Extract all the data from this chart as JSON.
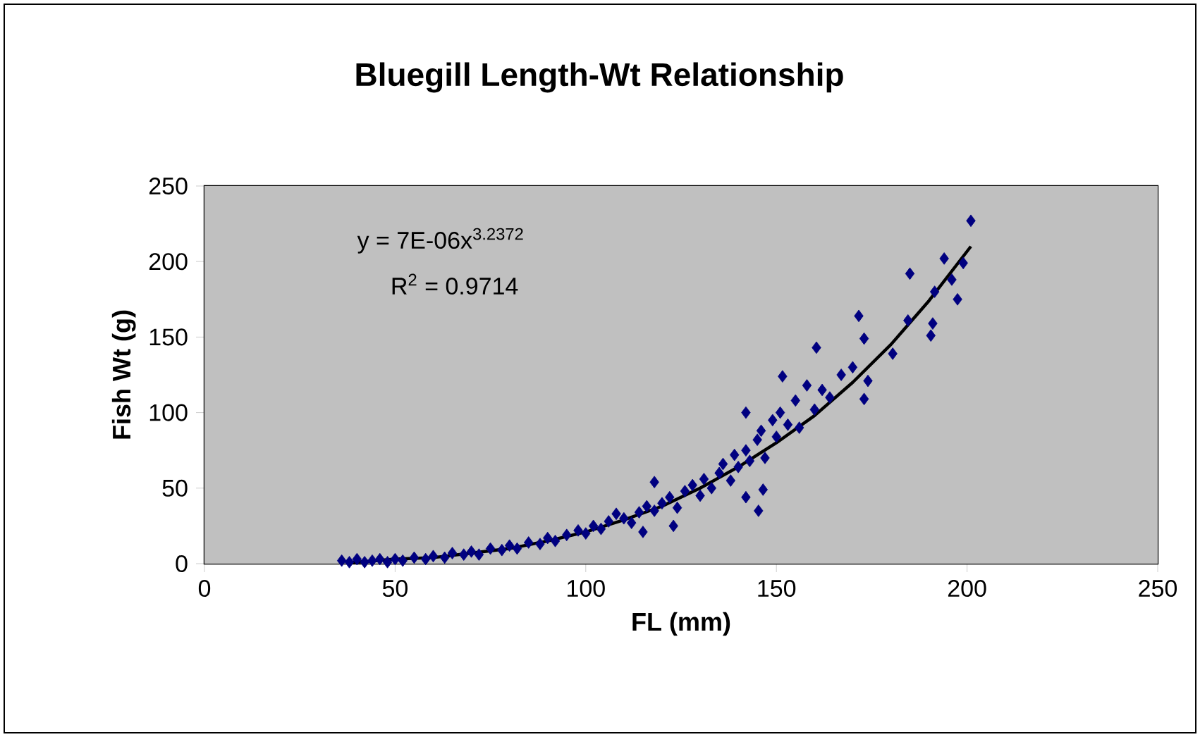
{
  "chart_data": {
    "type": "scatter",
    "title": "Bluegill Length-Wt Relationship",
    "xlabel": "FL (mm)",
    "ylabel": "Fish Wt (g)",
    "xlim": [
      0,
      250
    ],
    "xticks": [
      0,
      50,
      100,
      150,
      200,
      250
    ],
    "ylim": [
      0,
      250
    ],
    "yticks": [
      0,
      50,
      100,
      150,
      200,
      250
    ],
    "marker": "diamond",
    "annotations": [
      "y = 7E-06x$^{3.2372}$",
      "R$^{2}$ = 0.9714"
    ],
    "series": [
      {
        "color": "#000080",
        "x": [
          36,
          38,
          40,
          42,
          44,
          46,
          48,
          50,
          52,
          55,
          58,
          60,
          63,
          65,
          68,
          70,
          72,
          75,
          78,
          80,
          82,
          85,
          88,
          90,
          92,
          95,
          98,
          100,
          102,
          104,
          106,
          108,
          110,
          112,
          114,
          116,
          118,
          120,
          122,
          124,
          126,
          128,
          130,
          131,
          133,
          135,
          136,
          138,
          139,
          140,
          142,
          143,
          145,
          146,
          147,
          149,
          150,
          151,
          153,
          155,
          156,
          158,
          160,
          162,
          164,
          167,
          170,
          201,
          194,
          199,
          196,
          197.5,
          185,
          191.5,
          191,
          190.5,
          171.6,
          184.5,
          180.5,
          173,
          160.5,
          151.6,
          173,
          174,
          145.3,
          146.5,
          142,
          118,
          123,
          115,
          142
        ],
        "values": [
          2,
          1,
          3,
          1,
          2,
          3,
          1,
          3,
          2,
          4,
          3,
          5,
          4,
          7,
          6,
          8,
          6,
          10,
          9,
          12,
          10,
          14,
          13,
          17,
          15,
          19,
          22,
          20,
          25,
          23,
          28,
          33,
          30,
          27,
          34,
          38,
          35,
          40,
          44,
          37,
          48,
          52,
          45,
          56,
          50,
          60,
          66,
          55,
          72,
          64,
          75,
          68,
          82,
          88,
          70,
          95,
          84,
          100,
          92,
          108,
          90,
          118,
          102,
          115,
          110,
          125,
          130,
          227,
          202,
          199,
          188,
          175,
          192,
          180,
          159,
          151,
          164,
          161,
          139,
          149,
          143,
          124,
          109,
          121,
          35,
          49,
          44,
          54,
          25,
          21,
          100
        ]
      },
      {
        "type": "line",
        "marker": "none",
        "color": "#000000",
        "x": [
          37,
          40,
          50,
          60,
          70,
          80,
          90,
          100,
          110,
          120,
          130,
          140,
          150,
          160,
          170,
          180,
          190,
          201
        ],
        "values": [
          1,
          1,
          3,
          4,
          7,
          10,
          15,
          21,
          29,
          38,
          50,
          64,
          80,
          98,
          120,
          145,
          174,
          210
        ]
      }
    ]
  }
}
